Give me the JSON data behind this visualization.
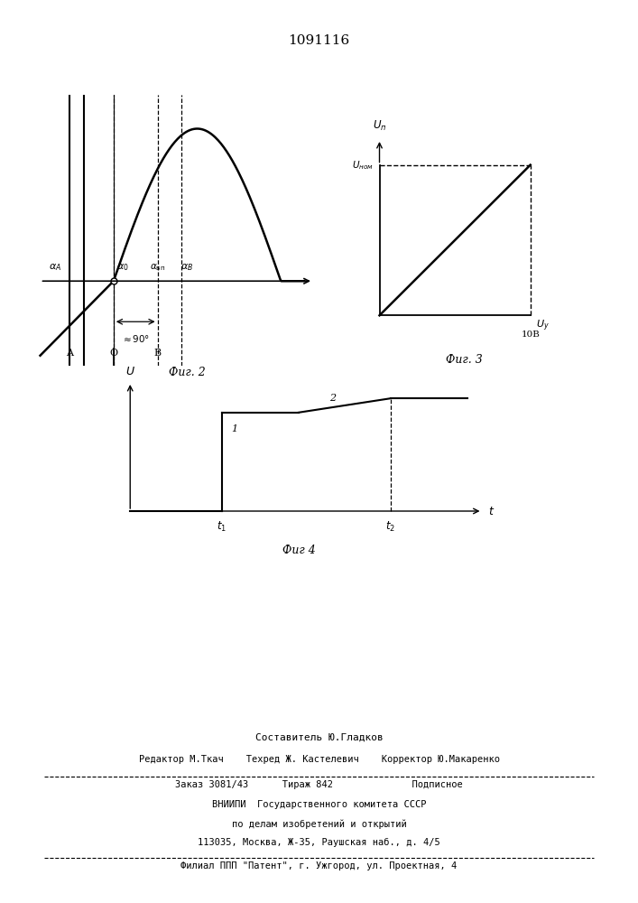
{
  "title": "1091116",
  "bg_color": "#ffffff",
  "fig2_caption": "Фиг. 2",
  "fig3_caption": "Фиг. 3",
  "fig4_caption": "Фиг 4",
  "footer_line1": "Составитель Ю.Гладков",
  "footer_line2": "Редактор М.Ткач    Техред Ж. Кастелевич    Корректор Ю.Макаренко",
  "footer_line3": "Заказ 3081/43      Тираж 842              Подписное",
  "footer_line4": "ВНИИПИ  Государственного комитета СССР",
  "footer_line5": "по делам изобретений и открытий",
  "footer_line6": "113035, Москва, Ж-35, Раушская наб., д. 4/5",
  "footer_line7": "Филиал ППП \"Патент\", г. Ужгород, ул. Проектная, 4"
}
